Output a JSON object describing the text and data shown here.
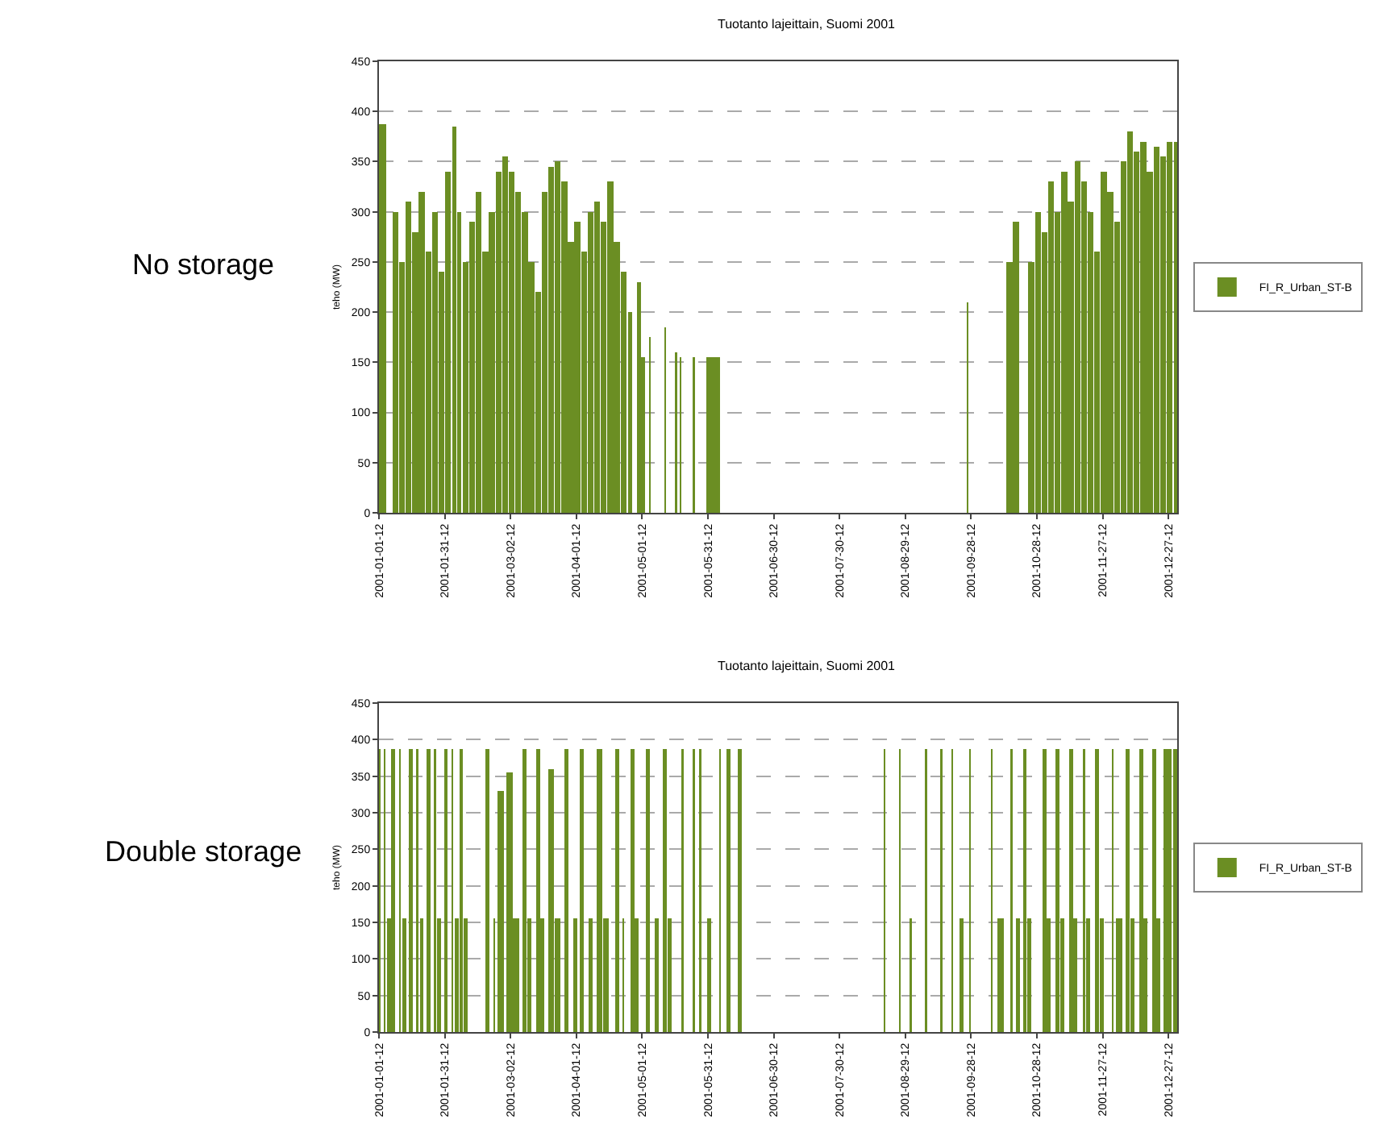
{
  "chart_data": [
    {
      "type": "bar",
      "title": "Tuotanto lajeittain, Suomi 2001",
      "ylabel": "teho (MW)",
      "annotations": [
        "No storage"
      ],
      "legend": "right",
      "grid": "y",
      "line_style": "dashed",
      "xlim": [
        "2001-01-01T12:00",
        "2001-12-31T12:00"
      ],
      "ylim": [
        0,
        450
      ],
      "yticks": [
        0,
        50,
        100,
        150,
        200,
        250,
        300,
        350,
        400,
        450
      ],
      "xticks": [
        {
          "value": "2001-01-01T12:00",
          "label": "2001-01-01-12"
        },
        {
          "value": "2001-01-31T12:00",
          "label": "2001-01-31-12"
        },
        {
          "value": "2001-03-02T12:00",
          "label": "2001-03-02-12"
        },
        {
          "value": "2001-04-01T12:00",
          "label": "2001-04-01-12"
        },
        {
          "value": "2001-05-01T12:00",
          "label": "2001-05-01-12"
        },
        {
          "value": "2001-05-31T12:00",
          "label": "2001-05-31-12"
        },
        {
          "value": "2001-06-30T12:00",
          "label": "2001-06-30-12"
        },
        {
          "value": "2001-07-30T12:00",
          "label": "2001-07-30-12"
        },
        {
          "value": "2001-08-29T12:00",
          "label": "2001-08-29-12"
        },
        {
          "value": "2001-09-28T12:00",
          "label": "2001-09-28-12"
        },
        {
          "value": "2001-10-28T12:00",
          "label": "2001-10-28-12"
        },
        {
          "value": "2001-11-27T12:00",
          "label": "2001-11-27-12"
        },
        {
          "value": "2001-12-27T12:00",
          "label": "2001-12-27-12"
        }
      ],
      "series": [
        {
          "name": "FI_R_Urban_ST-B",
          "color": "#6b8e23",
          "x": [
            "2001-01-01T12:00",
            "2001-01-09",
            "2001-01-12",
            "2001-01-15",
            "2001-01-18",
            "2001-01-21",
            "2001-01-24",
            "2001-01-27",
            "2001-01-30",
            "2001-02-02",
            "2001-02-05",
            "2001-02-07",
            "2001-02-10",
            "2001-02-13",
            "2001-02-16",
            "2001-02-19",
            "2001-02-22",
            "2001-02-25",
            "2001-02-28",
            "2001-03-03",
            "2001-03-06",
            "2001-03-09",
            "2001-03-12",
            "2001-03-15",
            "2001-03-18",
            "2001-03-21",
            "2001-03-24",
            "2001-03-27",
            "2001-03-30",
            "2001-04-02",
            "2001-04-05",
            "2001-04-08",
            "2001-04-11",
            "2001-04-14",
            "2001-04-17",
            "2001-04-20",
            "2001-04-23",
            "2001-04-26",
            "2001-04-28",
            "2001-04-30",
            "2001-05-02",
            "2001-05-04",
            "2001-05-05",
            "2001-05-09",
            "2001-05-12",
            "2001-05-13",
            "2001-05-17",
            "2001-05-18",
            "2001-05-19",
            "2001-05-22",
            "2001-05-25",
            "2001-05-26",
            "2001-06-03",
            "2001-06-10",
            "2001-09-27",
            "2001-09-28",
            "2001-10-16",
            "2001-10-19",
            "2001-10-23",
            "2001-10-26",
            "2001-10-29",
            "2001-11-01",
            "2001-11-04",
            "2001-11-07",
            "2001-11-10",
            "2001-11-13",
            "2001-11-16",
            "2001-11-19",
            "2001-11-22",
            "2001-11-25",
            "2001-11-28",
            "2001-12-01",
            "2001-12-04",
            "2001-12-07",
            "2001-12-10",
            "2001-12-13",
            "2001-12-16",
            "2001-12-19",
            "2001-12-22",
            "2001-12-25",
            "2001-12-28",
            "2001-12-31T12:00"
          ],
          "values": [
            387,
            300,
            250,
            310,
            280,
            320,
            260,
            300,
            240,
            340,
            385,
            300,
            250,
            290,
            320,
            260,
            300,
            340,
            355,
            340,
            320,
            300,
            250,
            220,
            320,
            345,
            350,
            330,
            270,
            290,
            260,
            300,
            310,
            290,
            330,
            270,
            240,
            200,
            0,
            230,
            155,
            0,
            175,
            0,
            185,
            0,
            160,
            0,
            155,
            0,
            155,
            0,
            155,
            0,
            210,
            0,
            250,
            290,
            0,
            250,
            300,
            280,
            330,
            300,
            340,
            310,
            350,
            330,
            300,
            260,
            340,
            320,
            290,
            350,
            380,
            360,
            370,
            340,
            365,
            355,
            370,
            370
          ]
        }
      ]
    },
    {
      "type": "bar",
      "title": "Tuotanto lajeittain, Suomi 2001",
      "ylabel": "teho (MW)",
      "annotations": [
        "Double storage"
      ],
      "legend": "right",
      "grid": "y",
      "line_style": "dashed",
      "xlim": [
        "2001-01-01T12:00",
        "2001-12-31T12:00"
      ],
      "ylim": [
        0,
        450
      ],
      "yticks": [
        0,
        50,
        100,
        150,
        200,
        250,
        300,
        350,
        400,
        450
      ],
      "xticks": [
        {
          "value": "2001-01-01T12:00",
          "label": "2001-01-01-12"
        },
        {
          "value": "2001-01-31T12:00",
          "label": "2001-01-31-12"
        },
        {
          "value": "2001-03-02T12:00",
          "label": "2001-03-02-12"
        },
        {
          "value": "2001-04-01T12:00",
          "label": "2001-04-01-12"
        },
        {
          "value": "2001-05-01T12:00",
          "label": "2001-05-01-12"
        },
        {
          "value": "2001-05-31T12:00",
          "label": "2001-05-31-12"
        },
        {
          "value": "2001-06-30T12:00",
          "label": "2001-06-30-12"
        },
        {
          "value": "2001-07-30T12:00",
          "label": "2001-07-30-12"
        },
        {
          "value": "2001-08-29T12:00",
          "label": "2001-08-29-12"
        },
        {
          "value": "2001-09-28T12:00",
          "label": "2001-09-28-12"
        },
        {
          "value": "2001-10-28T12:00",
          "label": "2001-10-28-12"
        },
        {
          "value": "2001-11-27T12:00",
          "label": "2001-11-27-12"
        },
        {
          "value": "2001-12-27T12:00",
          "label": "2001-12-27-12"
        }
      ],
      "series": [
        {
          "name": "FI_R_Urban_ST-B",
          "color": "#6b8e23",
          "x": [
            "2001-01-01T12:00",
            "2001-01-03",
            "2001-01-04",
            "2001-01-06",
            "2001-01-08",
            "2001-01-10",
            "2001-01-11",
            "2001-01-13",
            "2001-01-16",
            "2001-01-18",
            "2001-01-19",
            "2001-01-21",
            "2001-01-24",
            "2001-01-26",
            "2001-01-27",
            "2001-01-29",
            "2001-02-01",
            "2001-02-03",
            "2001-02-04",
            "2001-02-06",
            "2001-02-08",
            "2001-02-10",
            "2001-02-20",
            "2001-02-22",
            "2001-02-23",
            "2001-02-26",
            "2001-03-02",
            "2001-03-05",
            "2001-03-09",
            "2001-03-11",
            "2001-03-15",
            "2001-03-17",
            "2001-03-21",
            "2001-03-24",
            "2001-03-28",
            "2001-03-30",
            "2001-04-01",
            "2001-04-04",
            "2001-04-06",
            "2001-04-08",
            "2001-04-12",
            "2001-04-15",
            "2001-04-20",
            "2001-04-22",
            "2001-04-23",
            "2001-04-27",
            "2001-04-29",
            "2001-05-04",
            "2001-05-06",
            "2001-05-08",
            "2001-05-12",
            "2001-05-14",
            "2001-05-18",
            "2001-05-20",
            "2001-05-21",
            "2001-05-25",
            "2001-05-26",
            "2001-05-28",
            "2001-05-29",
            "2001-06-01",
            "2001-06-03",
            "2001-06-06",
            "2001-06-07",
            "2001-06-10",
            "2001-06-12",
            "2001-06-15",
            "2001-06-17",
            "2001-08-20",
            "2001-08-21",
            "2001-08-27",
            "2001-08-28",
            "2001-09-01",
            "2001-09-02",
            "2001-09-08",
            "2001-09-09",
            "2001-09-15",
            "2001-09-16",
            "2001-09-20",
            "2001-09-21",
            "2001-09-24",
            "2001-09-26",
            "2001-09-28",
            "2001-09-29",
            "2001-10-08",
            "2001-10-09",
            "2001-10-12",
            "2001-10-17",
            "2001-10-18",
            "2001-10-20",
            "2001-10-23",
            "2001-10-25",
            "2001-11-01",
            "2001-11-03",
            "2001-11-07",
            "2001-11-09",
            "2001-11-13",
            "2001-11-15",
            "2001-11-18",
            "2001-11-19",
            "2001-11-21",
            "2001-11-25",
            "2001-11-27",
            "2001-12-01",
            "2001-12-02",
            "2001-12-05",
            "2001-12-09",
            "2001-12-11",
            "2001-12-15",
            "2001-12-17",
            "2001-12-21",
            "2001-12-23",
            "2001-12-27",
            "2001-12-31T12:00"
          ],
          "values": [
            387,
            0,
            387,
            155,
            387,
            0,
            387,
            155,
            387,
            0,
            387,
            155,
            387,
            0,
            387,
            155,
            387,
            0,
            387,
            155,
            387,
            155,
            387,
            0,
            155,
            330,
            355,
            155,
            387,
            155,
            387,
            155,
            360,
            155,
            387,
            0,
            155,
            387,
            0,
            155,
            387,
            155,
            387,
            0,
            155,
            387,
            155,
            387,
            0,
            155,
            387,
            155,
            0,
            387,
            0,
            387,
            0,
            387,
            0,
            155,
            0,
            387,
            0,
            387,
            0,
            387,
            0,
            387,
            0,
            387,
            0,
            155,
            0,
            387,
            0,
            387,
            0,
            387,
            0,
            155,
            0,
            387,
            0,
            387,
            0,
            155,
            387,
            0,
            155,
            387,
            155,
            387,
            155,
            387,
            155,
            387,
            155,
            0,
            387,
            155,
            387,
            155,
            0,
            387,
            155,
            387,
            155,
            387,
            155,
            387,
            155,
            387,
            387
          ]
        }
      ]
    }
  ]
}
